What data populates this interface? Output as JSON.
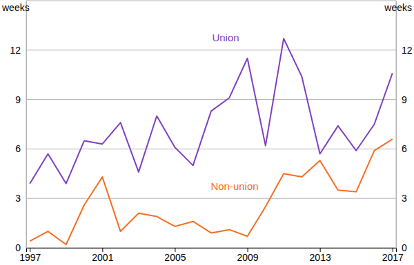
{
  "chart_data": {
    "type": "line",
    "ylabel": "weeks",
    "y2label": "weeks",
    "x": [
      1997,
      1998,
      1999,
      2000,
      2001,
      2002,
      2003,
      2004,
      2005,
      2006,
      2007,
      2008,
      2009,
      2010,
      2011,
      2012,
      2013,
      2014,
      2015,
      2016,
      2017
    ],
    "series": [
      {
        "name": "Union",
        "color": "#7f3fbf",
        "values": [
          3.9,
          5.7,
          3.9,
          6.5,
          6.3,
          7.6,
          4.6,
          8.0,
          6.1,
          5.0,
          8.3,
          9.1,
          11.5,
          6.2,
          12.7,
          10.4,
          5.7,
          7.4,
          5.9,
          7.5,
          10.6
        ]
      },
      {
        "name": "Non-union",
        "color": "#f26f21",
        "values": [
          0.4,
          1.0,
          0.2,
          2.6,
          4.3,
          1.0,
          2.1,
          1.9,
          1.3,
          1.6,
          0.9,
          1.1,
          0.7,
          2.5,
          4.5,
          4.3,
          5.3,
          3.5,
          3.4,
          5.9,
          6.6
        ]
      }
    ],
    "xlim": [
      1996.8,
      2017.2
    ],
    "xticks": [
      1997,
      2001,
      2005,
      2009,
      2013,
      2017
    ],
    "ylim": [
      0,
      15
    ],
    "yticks": [
      0,
      3,
      6,
      9,
      12
    ],
    "y2lim": [
      0,
      15
    ],
    "y2ticks": [
      0,
      3,
      6,
      9,
      12
    ],
    "grid": true
  }
}
